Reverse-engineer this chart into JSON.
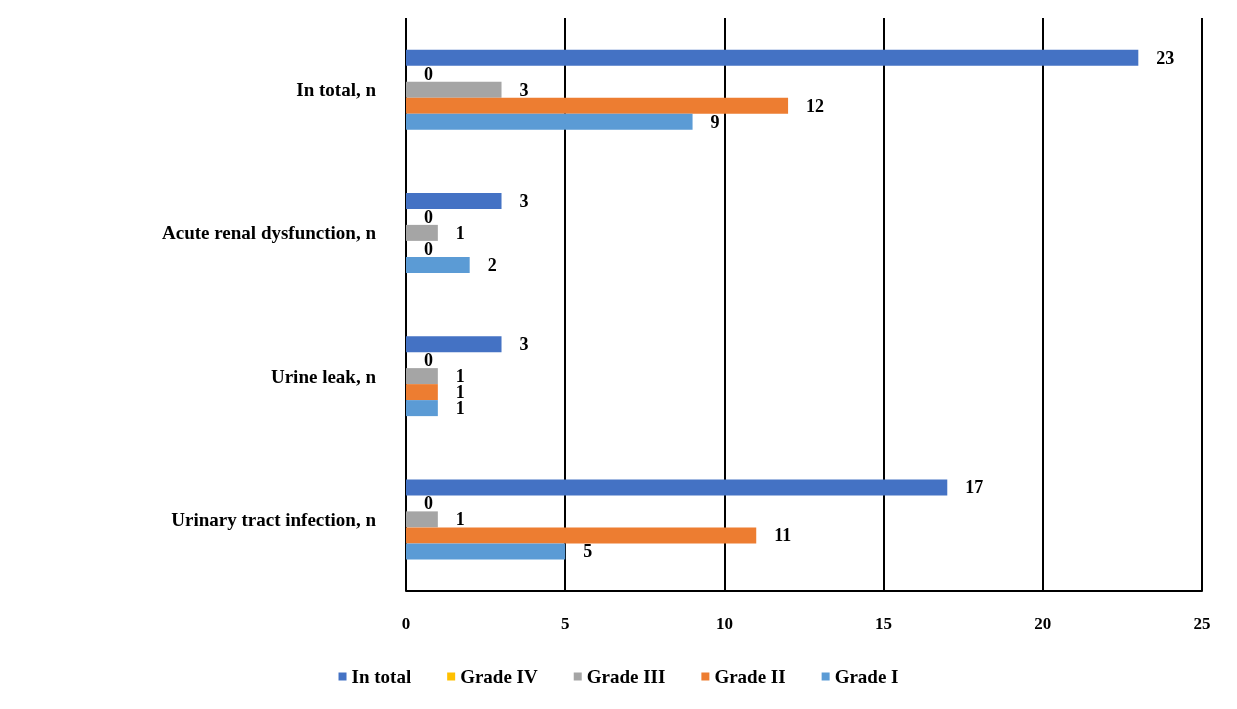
{
  "chart_data": {
    "type": "bar",
    "orientation": "horizontal",
    "categories": [
      "In total, n",
      "Acute renal dysfunction, n",
      "Urine leak, n",
      "Urinary tract infection, n"
    ],
    "series": [
      {
        "name": "In total",
        "color": "#4472c4",
        "values": [
          23,
          3,
          3,
          17
        ]
      },
      {
        "name": "Grade IV",
        "color": "#ffc000",
        "values": [
          0,
          0,
          0,
          0
        ]
      },
      {
        "name": "Grade III",
        "color": "#a5a5a5",
        "values": [
          3,
          1,
          1,
          1
        ]
      },
      {
        "name": "Grade II",
        "color": "#ed7d31",
        "values": [
          12,
          0,
          1,
          11
        ]
      },
      {
        "name": "Grade I",
        "color": "#5b9bd5",
        "values": [
          9,
          2,
          1,
          5
        ]
      }
    ],
    "xlim": [
      0,
      25
    ],
    "xticks": [
      0,
      5,
      10,
      15,
      20,
      25
    ],
    "grid": "x",
    "data_labels": true,
    "legend": "bottom"
  }
}
